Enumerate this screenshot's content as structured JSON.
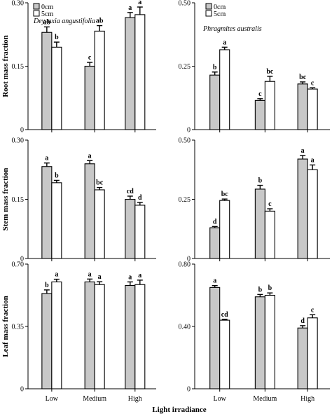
{
  "figure": {
    "x_axis_label": "Light irradiance",
    "categories": [
      "Low",
      "Medium",
      "High"
    ],
    "legend": [
      "0cm",
      "5cm"
    ],
    "series_colors": {
      "0cm": "#c8c8c8",
      "5cm": "#ffffff"
    }
  },
  "chart_data": [
    {
      "type": "bar",
      "species": "Deyeuxia angustifolia",
      "ylabel": "Root mass fraction",
      "ylim": [
        0,
        0.3
      ],
      "yticks": [
        "0",
        "0.15",
        "0.30"
      ],
      "ytick_values": [
        0,
        0.15,
        0.3
      ],
      "categories": [
        "Low",
        "Medium",
        "High"
      ],
      "series": [
        {
          "name": "0cm",
          "values": [
            0.23,
            0.15,
            0.265
          ],
          "errors": [
            0.013,
            0.009,
            0.012
          ],
          "labels": [
            "ab",
            "c",
            "a"
          ]
        },
        {
          "name": "5cm",
          "values": [
            0.195,
            0.233,
            0.272
          ],
          "errors": [
            0.012,
            0.013,
            0.018
          ],
          "labels": [
            "b",
            "ab",
            "a"
          ]
        }
      ]
    },
    {
      "type": "bar",
      "species": "Phragmites australis",
      "ylabel": "",
      "ylim": [
        0,
        0.5
      ],
      "yticks": [
        "0",
        "0.25",
        "0.50"
      ],
      "ytick_values": [
        0,
        0.25,
        0.5
      ],
      "categories": [
        "Low",
        "Medium",
        "High"
      ],
      "series": [
        {
          "name": "0cm",
          "values": [
            0.215,
            0.115,
            0.18
          ],
          "errors": [
            0.012,
            0.007,
            0.008
          ],
          "labels": [
            "b",
            "c",
            "bc"
          ]
        },
        {
          "name": "5cm",
          "values": [
            0.315,
            0.19,
            0.16
          ],
          "errors": [
            0.01,
            0.02,
            0.005
          ],
          "labels": [
            "a",
            "bc",
            "c"
          ]
        }
      ]
    },
    {
      "type": "bar",
      "species": "",
      "ylabel": "Stem mass fraction",
      "ylim": [
        0,
        0.3
      ],
      "yticks": [
        "0",
        "0.15",
        "0.30"
      ],
      "ytick_values": [
        0,
        0.15,
        0.3
      ],
      "categories": [
        "Low",
        "Medium",
        "High"
      ],
      "series": [
        {
          "name": "0cm",
          "values": [
            0.233,
            0.24,
            0.15
          ],
          "errors": [
            0.009,
            0.008,
            0.008
          ],
          "labels": [
            "a",
            "a",
            "cd"
          ]
        },
        {
          "name": "5cm",
          "values": [
            0.192,
            0.174,
            0.135
          ],
          "errors": [
            0.006,
            0.006,
            0.007
          ],
          "labels": [
            "b",
            "bc",
            "d"
          ]
        }
      ]
    },
    {
      "type": "bar",
      "species": "",
      "ylabel": "",
      "ylim": [
        0,
        0.5
      ],
      "yticks": [
        "0",
        "0.25",
        "0.50"
      ],
      "ytick_values": [
        0,
        0.25,
        0.5
      ],
      "categories": [
        "Low",
        "Medium",
        "High"
      ],
      "series": [
        {
          "name": "0cm",
          "values": [
            0.13,
            0.293,
            0.42
          ],
          "errors": [
            0.005,
            0.016,
            0.015
          ],
          "labels": [
            "d",
            "b",
            "a"
          ]
        },
        {
          "name": "5cm",
          "values": [
            0.245,
            0.2,
            0.375
          ],
          "errors": [
            0.006,
            0.01,
            0.02
          ],
          "labels": [
            "bc",
            "c",
            "a"
          ]
        }
      ]
    },
    {
      "type": "bar",
      "species": "",
      "ylabel": "Leaf mass fraction",
      "ylim": [
        0,
        0.7
      ],
      "yticks": [
        "0",
        "0.35",
        "0.70"
      ],
      "ytick_values": [
        0,
        0.35,
        0.7
      ],
      "categories": [
        "Low",
        "Medium",
        "High"
      ],
      "series": [
        {
          "name": "0cm",
          "values": [
            0.535,
            0.6,
            0.58
          ],
          "errors": [
            0.02,
            0.016,
            0.02
          ],
          "labels": [
            "b",
            "a",
            "a"
          ]
        },
        {
          "name": "5cm",
          "values": [
            0.6,
            0.585,
            0.585
          ],
          "errors": [
            0.015,
            0.016,
            0.025
          ],
          "labels": [
            "a",
            "a",
            "a"
          ]
        }
      ]
    },
    {
      "type": "bar",
      "species": "",
      "ylabel": "",
      "ylim": [
        0,
        0.8
      ],
      "yticks": [
        "0",
        "0.40",
        "0.80"
      ],
      "ytick_values": [
        0,
        0.4,
        0.8
      ],
      "categories": [
        "Low",
        "Medium",
        "High"
      ],
      "series": [
        {
          "name": "0cm",
          "values": [
            0.65,
            0.59,
            0.39
          ],
          "errors": [
            0.012,
            0.015,
            0.015
          ],
          "labels": [
            "a",
            "b",
            "d"
          ]
        },
        {
          "name": "5cm",
          "values": [
            0.44,
            0.6,
            0.455
          ],
          "errors": [
            0.006,
            0.015,
            0.02
          ],
          "labels": [
            "cd",
            "b",
            "c"
          ]
        }
      ]
    }
  ]
}
